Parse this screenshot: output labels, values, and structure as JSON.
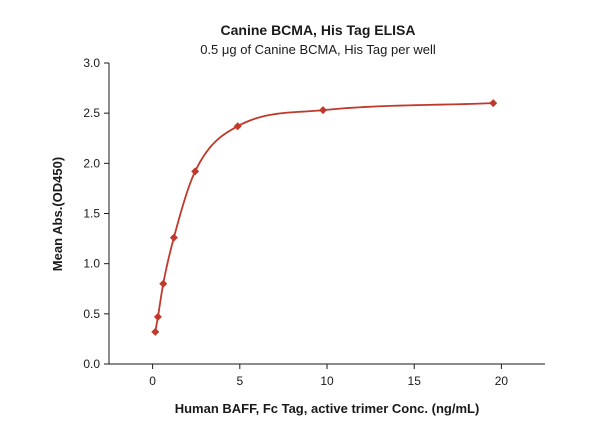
{
  "chart_data": {
    "type": "scatter",
    "title": "Canine BCMA, His Tag ELISA",
    "subtitle": "0.5 μg of Canine BCMA, His Tag per well",
    "xlabel": "Human BAFF, Fc Tag, active trimer Conc. (ng/mL)",
    "ylabel": "Mean Abs.(OD450)",
    "xlim": [
      -2.5,
      22.5
    ],
    "ylim": [
      0,
      3.0
    ],
    "x_ticks": [
      0,
      5,
      10,
      15,
      20
    ],
    "y_ticks": [
      0.0,
      0.5,
      1.0,
      1.5,
      2.0,
      2.5,
      3.0
    ],
    "x_tick_labels": [
      "0",
      "5",
      "10",
      "15",
      "20"
    ],
    "y_tick_labels": [
      "0.0",
      "0.5",
      "1.0",
      "1.5",
      "2.0",
      "2.5",
      "3.0"
    ],
    "grid": false,
    "series": [
      {
        "x": [
          0.153,
          0.305,
          0.61,
          1.22,
          2.44,
          4.88,
          9.77,
          19.53
        ],
        "y": [
          0.32,
          0.47,
          0.8,
          1.26,
          1.92,
          2.37,
          2.53,
          2.6
        ],
        "marker": "diamond",
        "fit_line": true
      }
    ],
    "colors": {
      "marker": "#c0392b",
      "line": "#c0392b",
      "axis": "#1a1a1a"
    }
  }
}
